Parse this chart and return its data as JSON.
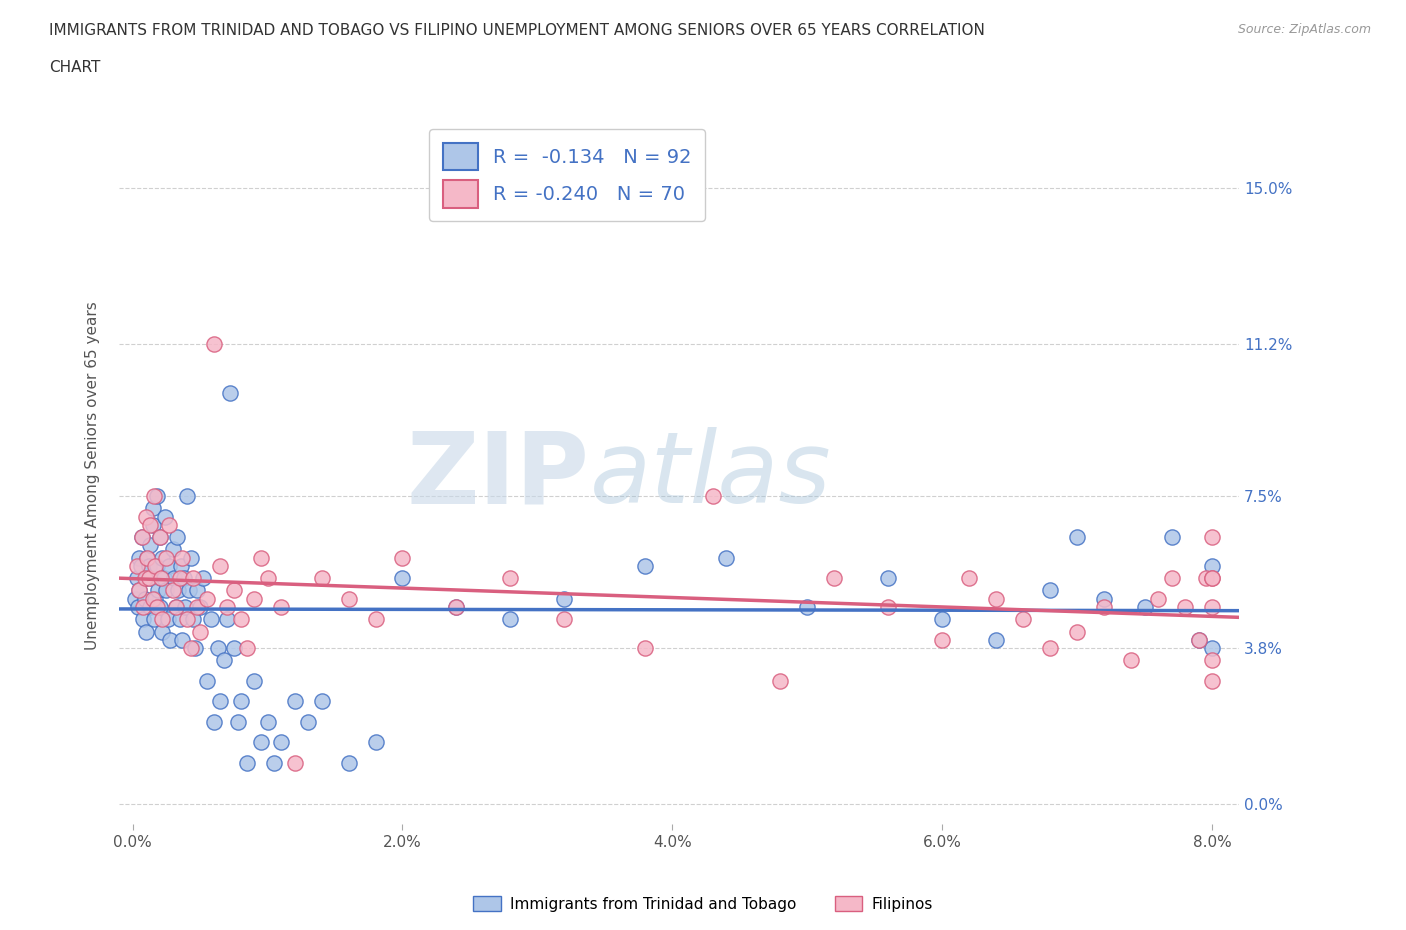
{
  "title_line1": "IMMIGRANTS FROM TRINIDAD AND TOBAGO VS FILIPINO UNEMPLOYMENT AMONG SENIORS OVER 65 YEARS CORRELATION",
  "title_line2": "CHART",
  "source_text": "Source: ZipAtlas.com",
  "ylabel": "Unemployment Among Seniors over 65 years",
  "xlim": [
    -0.001,
    0.082
  ],
  "ylim": [
    -0.005,
    0.165
  ],
  "yticks": [
    0.0,
    0.038,
    0.075,
    0.112,
    0.15
  ],
  "ytick_labels": [
    "0.0%",
    "3.8%",
    "7.5%",
    "11.2%",
    "15.0%"
  ],
  "xticks": [
    0.0,
    0.02,
    0.04,
    0.06,
    0.08
  ],
  "xtick_labels": [
    "0.0%",
    "2.0%",
    "4.0%",
    "6.0%",
    "8.0%"
  ],
  "blue_R": -0.134,
  "blue_N": 92,
  "pink_R": -0.24,
  "pink_N": 70,
  "blue_color": "#aec6e8",
  "pink_color": "#f5b8c8",
  "blue_line_color": "#4472c4",
  "pink_line_color": "#d95f7f",
  "legend_label_blue": "Immigrants from Trinidad and Tobago",
  "legend_label_pink": "Filipinos",
  "watermark_zip": "ZIP",
  "watermark_atlas": "atlas",
  "background_color": "#ffffff",
  "grid_color": "#d0d0d0",
  "blue_scatter_x": [
    0.0002,
    0.0003,
    0.0004,
    0.0005,
    0.0005,
    0.0006,
    0.0007,
    0.0008,
    0.0009,
    0.001,
    0.001,
    0.0011,
    0.0012,
    0.0013,
    0.0013,
    0.0014,
    0.0015,
    0.0015,
    0.0016,
    0.0017,
    0.0018,
    0.0018,
    0.0019,
    0.002,
    0.002,
    0.0021,
    0.0022,
    0.0022,
    0.0023,
    0.0024,
    0.0025,
    0.0026,
    0.0027,
    0.0028,
    0.003,
    0.0031,
    0.0032,
    0.0033,
    0.0034,
    0.0035,
    0.0036,
    0.0037,
    0.0038,
    0.0039,
    0.004,
    0.0042,
    0.0043,
    0.0045,
    0.0046,
    0.0048,
    0.005,
    0.0052,
    0.0055,
    0.0058,
    0.006,
    0.0063,
    0.0065,
    0.0068,
    0.007,
    0.0072,
    0.0075,
    0.0078,
    0.008,
    0.0085,
    0.009,
    0.0095,
    0.01,
    0.0105,
    0.011,
    0.012,
    0.013,
    0.014,
    0.016,
    0.018,
    0.02,
    0.024,
    0.028,
    0.032,
    0.038,
    0.044,
    0.05,
    0.056,
    0.06,
    0.064,
    0.068,
    0.07,
    0.072,
    0.075,
    0.077,
    0.079,
    0.08,
    0.08
  ],
  "blue_scatter_y": [
    0.05,
    0.055,
    0.048,
    0.052,
    0.06,
    0.058,
    0.065,
    0.045,
    0.05,
    0.055,
    0.042,
    0.06,
    0.058,
    0.063,
    0.048,
    0.055,
    0.072,
    0.068,
    0.045,
    0.05,
    0.058,
    0.075,
    0.052,
    0.065,
    0.048,
    0.055,
    0.06,
    0.042,
    0.055,
    0.07,
    0.052,
    0.045,
    0.058,
    0.04,
    0.062,
    0.055,
    0.048,
    0.065,
    0.052,
    0.045,
    0.058,
    0.04,
    0.055,
    0.048,
    0.075,
    0.052,
    0.06,
    0.045,
    0.038,
    0.052,
    0.048,
    0.055,
    0.03,
    0.045,
    0.02,
    0.038,
    0.025,
    0.035,
    0.045,
    0.1,
    0.038,
    0.02,
    0.025,
    0.01,
    0.03,
    0.015,
    0.02,
    0.01,
    0.015,
    0.025,
    0.02,
    0.025,
    0.01,
    0.015,
    0.055,
    0.048,
    0.045,
    0.05,
    0.058,
    0.06,
    0.048,
    0.055,
    0.045,
    0.04,
    0.052,
    0.065,
    0.05,
    0.048,
    0.065,
    0.04,
    0.058,
    0.038
  ],
  "pink_scatter_x": [
    0.0003,
    0.0005,
    0.0007,
    0.0008,
    0.0009,
    0.001,
    0.0011,
    0.0012,
    0.0013,
    0.0015,
    0.0016,
    0.0017,
    0.0018,
    0.002,
    0.0021,
    0.0022,
    0.0025,
    0.0027,
    0.003,
    0.0032,
    0.0035,
    0.0037,
    0.004,
    0.0043,
    0.0045,
    0.0048,
    0.005,
    0.0055,
    0.006,
    0.0065,
    0.007,
    0.0075,
    0.008,
    0.0085,
    0.009,
    0.0095,
    0.01,
    0.011,
    0.012,
    0.014,
    0.016,
    0.018,
    0.02,
    0.024,
    0.028,
    0.032,
    0.038,
    0.043,
    0.048,
    0.052,
    0.056,
    0.06,
    0.062,
    0.064,
    0.066,
    0.068,
    0.07,
    0.072,
    0.074,
    0.076,
    0.077,
    0.078,
    0.079,
    0.0795,
    0.08,
    0.08,
    0.08,
    0.08,
    0.08,
    0.08
  ],
  "pink_scatter_y": [
    0.058,
    0.052,
    0.065,
    0.048,
    0.055,
    0.07,
    0.06,
    0.055,
    0.068,
    0.05,
    0.075,
    0.058,
    0.048,
    0.065,
    0.055,
    0.045,
    0.06,
    0.068,
    0.052,
    0.048,
    0.055,
    0.06,
    0.045,
    0.038,
    0.055,
    0.048,
    0.042,
    0.05,
    0.112,
    0.058,
    0.048,
    0.052,
    0.045,
    0.038,
    0.05,
    0.06,
    0.055,
    0.048,
    0.01,
    0.055,
    0.05,
    0.045,
    0.06,
    0.048,
    0.055,
    0.045,
    0.038,
    0.075,
    0.03,
    0.055,
    0.048,
    0.04,
    0.055,
    0.05,
    0.045,
    0.038,
    0.042,
    0.048,
    0.035,
    0.05,
    0.055,
    0.048,
    0.04,
    0.055,
    0.065,
    0.055,
    0.048,
    0.03,
    0.055,
    0.035
  ]
}
